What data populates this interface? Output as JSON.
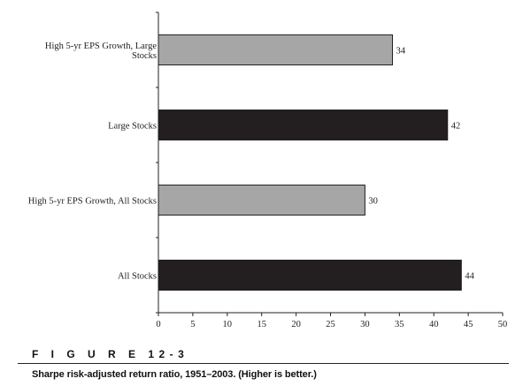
{
  "figure": {
    "number": "F I G U R E   12-3",
    "caption": "Sharpe risk-adjusted return ratio, 1951–2003. (Higher is better.)"
  },
  "chart_data": {
    "type": "bar",
    "orientation": "horizontal",
    "categories": [
      "High 5-yr EPS Growth, Large Stocks",
      "Large Stocks",
      "High 5-yr EPS Growth, All Stocks",
      "All Stocks"
    ],
    "category_label_lines": [
      [
        "High 5-yr EPS Growth, Large",
        "Stocks"
      ],
      [
        "Large Stocks"
      ],
      [
        "High 5-yr EPS Growth, All Stocks"
      ],
      [
        "All Stocks"
      ]
    ],
    "values": [
      34,
      42,
      30,
      44
    ],
    "bar_colors": [
      "#a6a6a6",
      "#231f20",
      "#a6a6a6",
      "#231f20"
    ],
    "xlim": [
      0,
      50
    ],
    "xticks": [
      0,
      5,
      10,
      15,
      20,
      25,
      30,
      35,
      40,
      45,
      50
    ],
    "grid": false,
    "legend": "none"
  }
}
